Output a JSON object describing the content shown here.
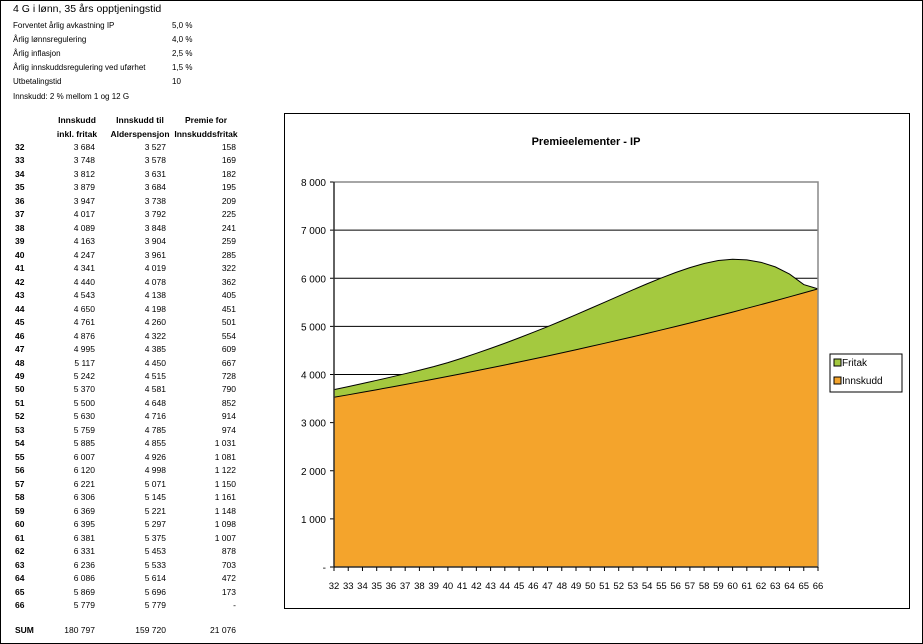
{
  "header": {
    "title": "4 G i lønn, 35 års opptjeningstid",
    "params": [
      {
        "label": "Forventet årlig avkastning IP",
        "value": "5,0 %"
      },
      {
        "label": "Årlig lønnsregulering",
        "value": "4,0 %"
      },
      {
        "label": "Årlig inflasjon",
        "value": "2,5 %"
      },
      {
        "label": "Årlig innskuddsregulering ved uførhet",
        "value": "1,5 %"
      },
      {
        "label": "Utbetalingstid",
        "value": "10"
      }
    ],
    "note": "Innskudd: 2 % mellom 1 og 12 G"
  },
  "table": {
    "headers": [
      [
        "Innskudd",
        "inkl. fritak"
      ],
      [
        "Innskudd til",
        "Alderspensjon"
      ],
      [
        "Premie for",
        "Innskuddsfritak"
      ]
    ],
    "rows": [
      [
        "32",
        "3 684",
        "3 527",
        "158"
      ],
      [
        "33",
        "3 748",
        "3 578",
        "169"
      ],
      [
        "34",
        "3 812",
        "3 631",
        "182"
      ],
      [
        "35",
        "3 879",
        "3 684",
        "195"
      ],
      [
        "36",
        "3 947",
        "3 738",
        "209"
      ],
      [
        "37",
        "4 017",
        "3 792",
        "225"
      ],
      [
        "38",
        "4 089",
        "3 848",
        "241"
      ],
      [
        "39",
        "4 163",
        "3 904",
        "259"
      ],
      [
        "40",
        "4 247",
        "3 961",
        "285"
      ],
      [
        "41",
        "4 341",
        "4 019",
        "322"
      ],
      [
        "42",
        "4 440",
        "4 078",
        "362"
      ],
      [
        "43",
        "4 543",
        "4 138",
        "405"
      ],
      [
        "44",
        "4 650",
        "4 198",
        "451"
      ],
      [
        "45",
        "4 761",
        "4 260",
        "501"
      ],
      [
        "46",
        "4 876",
        "4 322",
        "554"
      ],
      [
        "47",
        "4 995",
        "4 385",
        "609"
      ],
      [
        "48",
        "5 117",
        "4 450",
        "667"
      ],
      [
        "49",
        "5 242",
        "4 515",
        "728"
      ],
      [
        "50",
        "5 370",
        "4 581",
        "790"
      ],
      [
        "51",
        "5 500",
        "4 648",
        "852"
      ],
      [
        "52",
        "5 630",
        "4 716",
        "914"
      ],
      [
        "53",
        "5 759",
        "4 785",
        "974"
      ],
      [
        "54",
        "5 885",
        "4 855",
        "1 031"
      ],
      [
        "55",
        "6 007",
        "4 926",
        "1 081"
      ],
      [
        "56",
        "6 120",
        "4 998",
        "1 122"
      ],
      [
        "57",
        "6 221",
        "5 071",
        "1 150"
      ],
      [
        "58",
        "6 306",
        "5 145",
        "1 161"
      ],
      [
        "59",
        "6 369",
        "5 221",
        "1 148"
      ],
      [
        "60",
        "6 395",
        "5 297",
        "1 098"
      ],
      [
        "61",
        "6 381",
        "5 375",
        "1 007"
      ],
      [
        "62",
        "6 331",
        "5 453",
        "878"
      ],
      [
        "63",
        "6 236",
        "5 533",
        "703"
      ],
      [
        "64",
        "6 086",
        "5 614",
        "472"
      ],
      [
        "65",
        "5 869",
        "5 696",
        "173"
      ],
      [
        "66",
        "5 779",
        "5 779",
        "-"
      ]
    ],
    "sum": [
      "SUM",
      "180 797",
      "159 720",
      "21 076"
    ]
  },
  "chart_data": {
    "type": "area",
    "stacked": true,
    "title": "Premieelementer - IP",
    "categories": [
      32,
      33,
      34,
      35,
      36,
      37,
      38,
      39,
      40,
      41,
      42,
      43,
      44,
      45,
      46,
      47,
      48,
      49,
      50,
      51,
      52,
      53,
      54,
      55,
      56,
      57,
      58,
      59,
      60,
      61,
      62,
      63,
      64,
      65,
      66
    ],
    "series": [
      {
        "name": "Innskudd",
        "color": "#F4A42C",
        "values": [
          3527,
          3578,
          3631,
          3684,
          3738,
          3792,
          3848,
          3904,
          3961,
          4019,
          4078,
          4138,
          4198,
          4260,
          4322,
          4385,
          4450,
          4515,
          4581,
          4648,
          4716,
          4785,
          4855,
          4926,
          4998,
          5071,
          5145,
          5221,
          5297,
          5375,
          5453,
          5533,
          5614,
          5696,
          5779
        ]
      },
      {
        "name": "Fritak",
        "color": "#A4C93F",
        "values": [
          158,
          169,
          182,
          195,
          209,
          225,
          241,
          259,
          285,
          322,
          362,
          405,
          451,
          501,
          554,
          609,
          667,
          728,
          790,
          852,
          914,
          974,
          1031,
          1081,
          1122,
          1150,
          1161,
          1148,
          1098,
          1007,
          878,
          703,
          472,
          173,
          0
        ]
      }
    ],
    "ylim": [
      0,
      8000
    ],
    "yticks": [
      0,
      1000,
      2000,
      3000,
      4000,
      5000,
      6000,
      7000,
      8000
    ],
    "ytick_labels": [
      "-",
      "1 000",
      "2 000",
      "3 000",
      "4 000",
      "5 000",
      "6 000",
      "7 000",
      "8 000"
    ],
    "grid": true,
    "legend": "right"
  }
}
